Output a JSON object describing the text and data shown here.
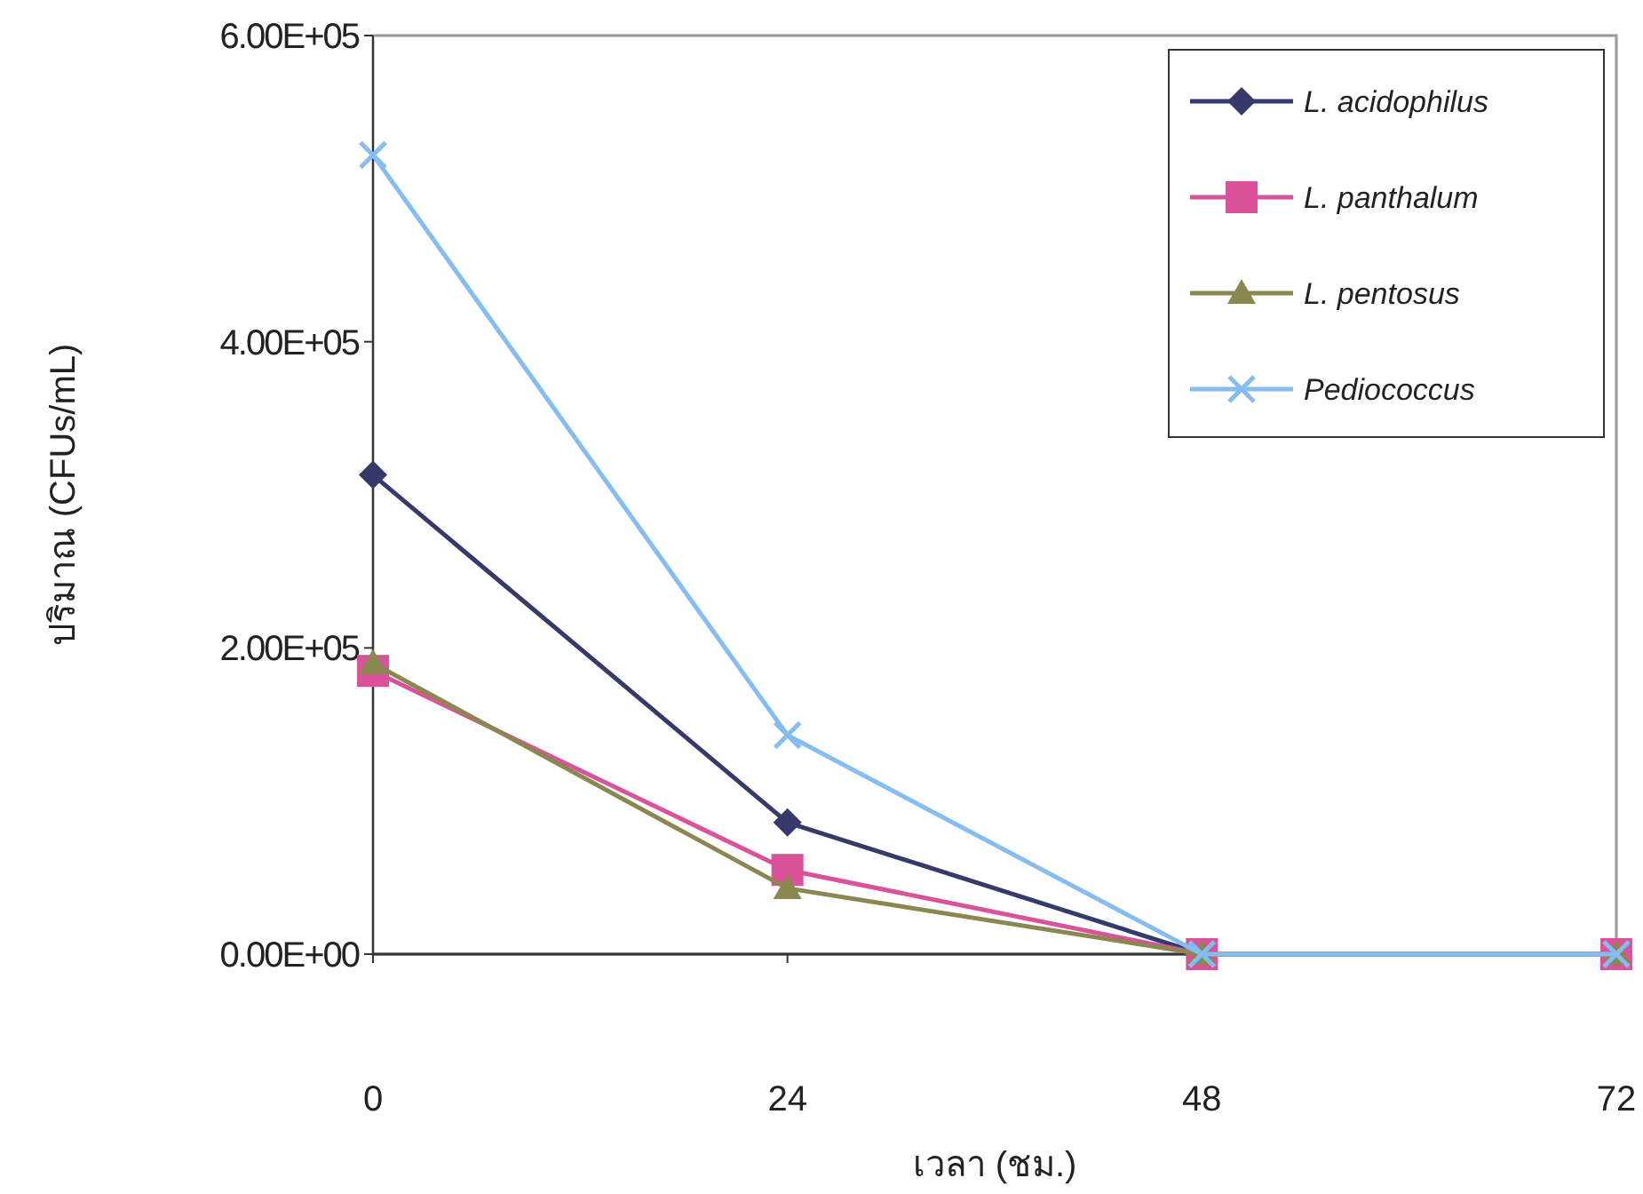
{
  "chart_data": {
    "type": "line",
    "xlabel": "เวลา (ชม.)",
    "ylabel": "ปริมาณ (CFUs/mL)",
    "x": [
      0,
      24,
      48,
      72
    ],
    "xlim": [
      0,
      72
    ],
    "xticks": [
      0,
      24,
      48,
      72
    ],
    "ylim": [
      0,
      600000
    ],
    "yticks": [
      {
        "value": 0,
        "label": "0.00E+00"
      },
      {
        "value": 200000,
        "label": "2.00E+05"
      },
      {
        "value": 400000,
        "label": "4.00E+05"
      },
      {
        "value": 600000,
        "label": "6.00E+05"
      }
    ],
    "grid": false,
    "legend": "top right",
    "series": [
      {
        "name": "L. acidophilus",
        "color": "#363a6a",
        "marker": "diamond",
        "values": [
          313000,
          86000,
          0,
          0
        ]
      },
      {
        "name": "L. panthalum",
        "color": "#d9529a",
        "marker": "square",
        "values": [
          185000,
          55000,
          0,
          0
        ]
      },
      {
        "name": "L. pentosus",
        "color": "#8a8750",
        "marker": "triangle",
        "values": [
          190000,
          43000,
          0,
          0
        ]
      },
      {
        "name": "Pediococcus",
        "color": "#86bdf0",
        "marker": "cross",
        "values": [
          522000,
          143000,
          0,
          0
        ]
      }
    ]
  }
}
